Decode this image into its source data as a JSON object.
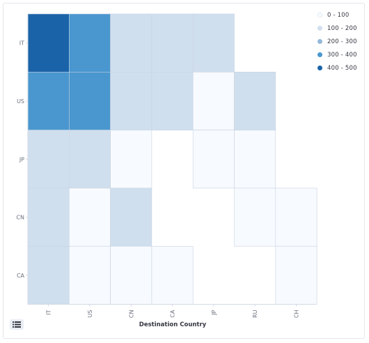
{
  "chart_data": {
    "type": "heatmap",
    "xlabel": "Destination Country",
    "ylabel": "",
    "x_categories": [
      "IT",
      "US",
      "CN",
      "CA",
      "JP",
      "RU",
      "CH"
    ],
    "y_categories": [
      "IT",
      "US",
      "JP",
      "CN",
      "CA"
    ],
    "values": [
      [
        480,
        330,
        150,
        150,
        150,
        null,
        null
      ],
      [
        330,
        330,
        150,
        150,
        0,
        150,
        null
      ],
      [
        150,
        150,
        30,
        null,
        30,
        30,
        null
      ],
      [
        150,
        30,
        150,
        null,
        null,
        30,
        30
      ],
      [
        150,
        30,
        30,
        30,
        null,
        null,
        30
      ]
    ],
    "legend": {
      "position": "top-right",
      "entries": [
        {
          "label": "0 - 100",
          "color": "#f7faff"
        },
        {
          "label": "100 - 200",
          "color": "#d0dfee"
        },
        {
          "label": "200 - 300",
          "color": "#93b9da"
        },
        {
          "label": "300 - 400",
          "color": "#4a97cf"
        },
        {
          "label": "400 - 500",
          "color": "#1b63a8"
        }
      ]
    },
    "grid": true
  },
  "colors": {
    "bin_0": "#f7faff",
    "bin_1": "#d0dfee",
    "bin_2": "#93b9da",
    "bin_3": "#4a97cf",
    "bin_4": "#1b63a8",
    "axis": "#d3dae6"
  },
  "legend_toggle_icon": "list-icon"
}
